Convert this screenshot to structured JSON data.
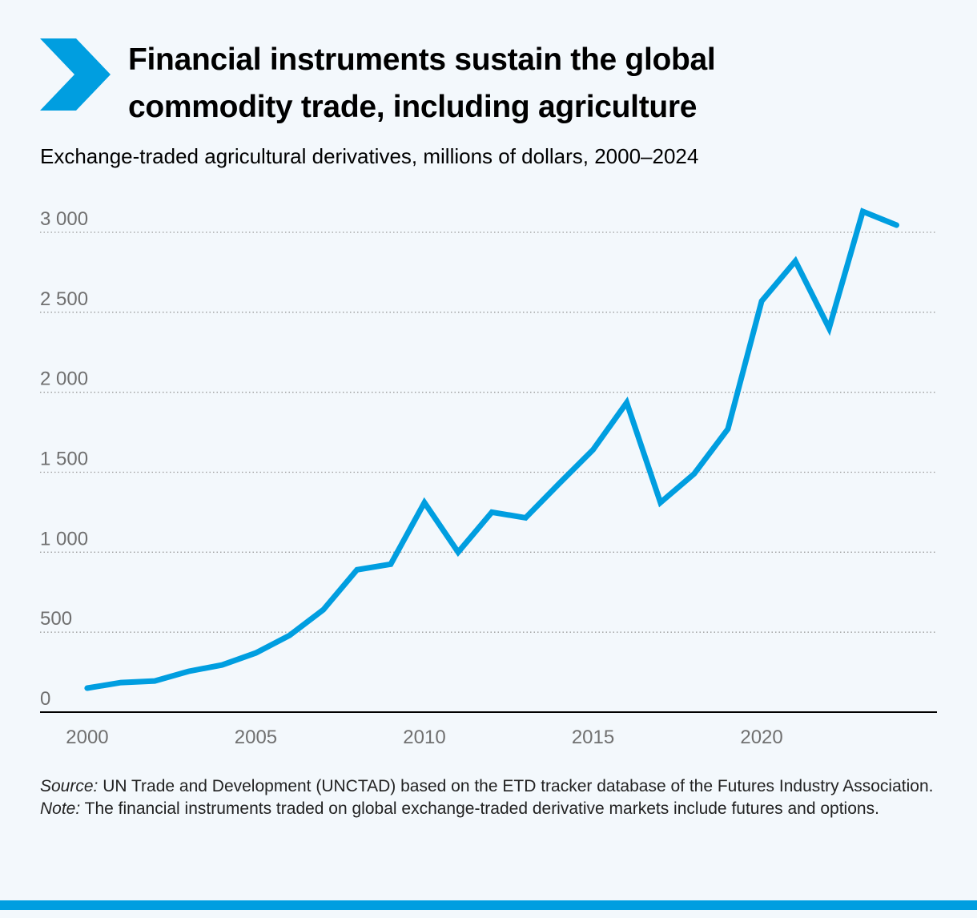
{
  "title_lines": [
    "Financial instruments sustain the global",
    "commodity trade, including agriculture"
  ],
  "subtitle": "Exchange-traded agricultural derivatives, millions of dollars, 2000–2024",
  "colors": {
    "accent": "#009ee0",
    "line": "#009ee0",
    "tick": "#707070",
    "background": "#f3f8fc"
  },
  "icon": "chevron-right-icon",
  "source_label": "Source:",
  "source_text": " UN Trade and Development (UNCTAD) based on the ETD tracker database of the Futures Industry Association.",
  "note_label": "Note:",
  "note_text": " The financial instruments traded on global exchange-traded derivative markets include futures and options.",
  "chart_data": {
    "type": "line",
    "title": "Exchange-traded agricultural derivatives, millions of dollars, 2000–2024",
    "xlabel": "",
    "ylabel": "",
    "xlim": [
      1998.6,
      2025.2
    ],
    "ylim": [
      0,
      3000
    ],
    "grid": true,
    "yticks": [
      0,
      500,
      1000,
      1500,
      2000,
      2500,
      3000
    ],
    "ytick_labels": [
      "0",
      "500",
      "1 000",
      "1 500",
      "2 000",
      "2 500",
      "3 000"
    ],
    "xticks": [
      2000,
      2005,
      2010,
      2015,
      2020
    ],
    "xtick_labels": [
      "2000",
      "2005",
      "2010",
      "2015",
      "2020"
    ],
    "series": [
      {
        "x": [
          2000,
          2001,
          2002,
          2003,
          2004,
          2005,
          2006,
          2007,
          2008,
          2009,
          2010,
          2011,
          2012,
          2013,
          2014,
          2015,
          2016,
          2017,
          2018,
          2019,
          2020,
          2021,
          2022,
          2023,
          2024
        ],
        "values": [
          150,
          185,
          195,
          255,
          295,
          370,
          480,
          640,
          890,
          925,
          1310,
          1000,
          1250,
          1215,
          1430,
          1640,
          1935,
          1310,
          1490,
          1770,
          2570,
          2820,
          2400,
          3130,
          3045
        ]
      }
    ]
  }
}
